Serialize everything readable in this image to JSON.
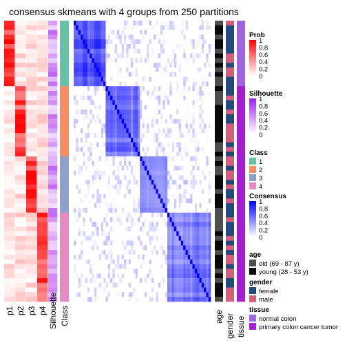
{
  "title": "consensus skmeans with 4 groups from 250 partitions",
  "columns": {
    "prob": [
      "p1",
      "p2",
      "p3",
      "p4"
    ],
    "silhouette": "Silhouette",
    "class": "Class",
    "age": "age",
    "gender": "gender",
    "tissue": "tissue"
  },
  "colors": {
    "prob_high": "#ff0000",
    "silhouette_high": "#a020f0",
    "consensus_high": "#0000ff",
    "class_1": "#66c2a5",
    "class_2": "#fc8d62",
    "class_3": "#8da0cb",
    "class_4": "#e78ac3",
    "age_old": "#4d4d4d",
    "age_young": "#0a0a0a",
    "gender_female": "#24497d",
    "gender_male": "#d1607a",
    "tissue_normal": "#9f64e0",
    "tissue_tumor": "#a61fd1"
  },
  "legends": {
    "prob": {
      "title": "Prob",
      "ticks": [
        "1",
        "0.8",
        "0.6",
        "0.4",
        "0.2",
        "0"
      ]
    },
    "silhouette": {
      "title": "Silhouette",
      "ticks": [
        "1",
        "0.8",
        "0.6",
        "0.4",
        "0.2",
        "0"
      ]
    },
    "class": {
      "title": "Class",
      "items": [
        "1",
        "2",
        "3",
        "4"
      ]
    },
    "consensus": {
      "title": "Consensus",
      "ticks": [
        "1",
        "0.8",
        "0.6",
        "0.4",
        "0.2",
        "0"
      ]
    },
    "age": {
      "title": "age",
      "items": [
        "old (69 - 87 y)",
        "young (28 - 53 y)"
      ]
    },
    "gender": {
      "title": "gender",
      "items": [
        "female",
        "male"
      ]
    },
    "tissue": {
      "title": "tissue",
      "items": [
        "normal colon",
        "primary colon cancer tumor"
      ]
    }
  },
  "chart_data": {
    "type": "heatmap",
    "title": "consensus skmeans with 4 groups from 250 partitions",
    "k": 4,
    "partitions": 250,
    "n_samples": 60,
    "class_sizes": [
      14,
      15,
      12,
      19
    ],
    "class_labels": [
      "1",
      "2",
      "3",
      "4"
    ],
    "annotation_columns": [
      "p1",
      "p2",
      "p3",
      "p4",
      "Silhouette",
      "Class"
    ],
    "side_annotations": [
      "age",
      "gender",
      "tissue"
    ],
    "prob_range": [
      0,
      1
    ],
    "silhouette_range": [
      0,
      1
    ],
    "consensus_range": [
      0,
      1
    ]
  }
}
